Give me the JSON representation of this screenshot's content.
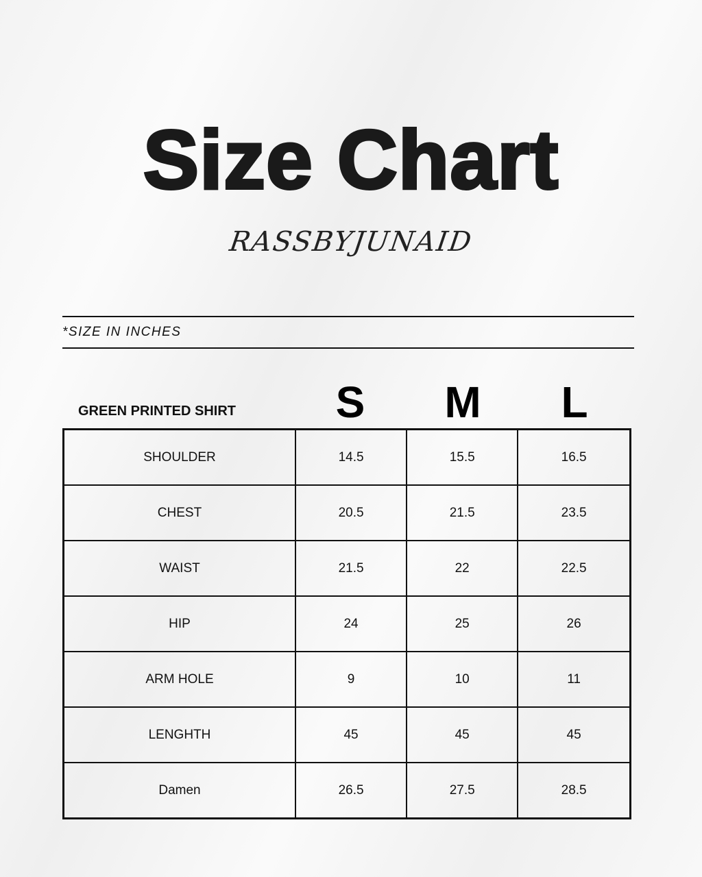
{
  "title": "Size Chart",
  "brand": "RASSBYJUNAID",
  "note": "*SIZE IN INCHES",
  "product": "GREEN PRINTED SHIRT",
  "sizes": [
    "S",
    "M",
    "L"
  ],
  "rows": [
    {
      "label": "SHOULDER",
      "values": [
        "14.5",
        "15.5",
        "16.5"
      ]
    },
    {
      "label": "CHEST",
      "values": [
        "20.5",
        "21.5",
        "23.5"
      ]
    },
    {
      "label": "WAIST",
      "values": [
        "21.5",
        "22",
        "22.5"
      ]
    },
    {
      "label": "HIP",
      "values": [
        "24",
        "25",
        "26"
      ]
    },
    {
      "label": "ARM HOLE",
      "values": [
        "9",
        "10",
        "11"
      ]
    },
    {
      "label": "LENGHTH",
      "values": [
        "45",
        "45",
        "45"
      ]
    },
    {
      "label": "Damen",
      "values": [
        "26.5",
        "27.5",
        "28.5"
      ]
    }
  ]
}
